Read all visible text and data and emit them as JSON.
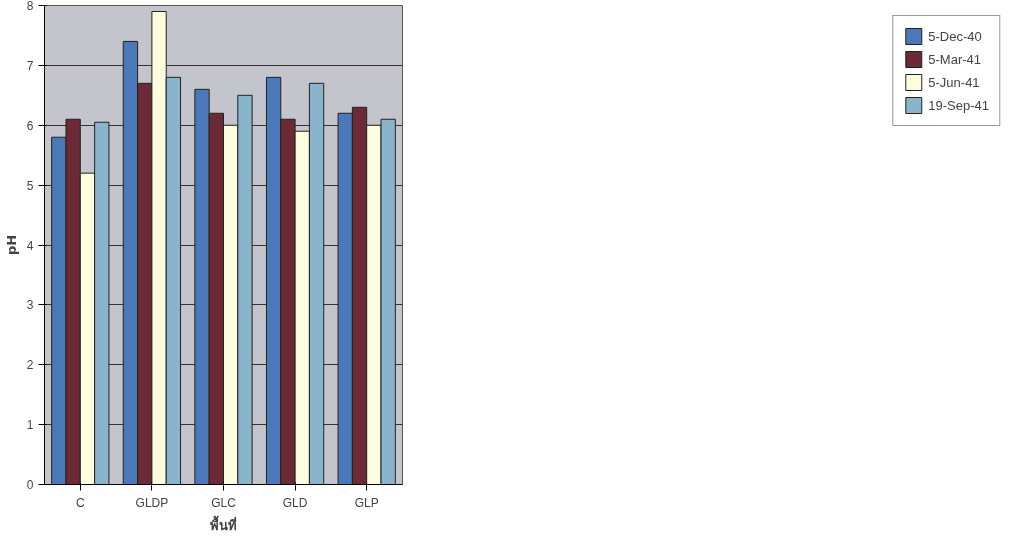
{
  "chart_data": {
    "type": "bar",
    "xlabel": "พื้นที่",
    "ylabel": "pH",
    "categories": [
      "C",
      "GLDP",
      "GLC",
      "GLD",
      "GLP"
    ],
    "series": [
      {
        "name": "5-Dec-40",
        "color": "#4a78b8",
        "values": [
          5.8,
          7.4,
          6.6,
          6.8,
          6.2
        ]
      },
      {
        "name": "5-Mar-41",
        "color": "#6b2a35",
        "values": [
          6.1,
          6.7,
          6.2,
          6.1,
          6.3
        ]
      },
      {
        "name": "5-Jun-41",
        "color": "#fffde0",
        "values": [
          5.2,
          7.9,
          6.0,
          5.9,
          6.0
        ]
      },
      {
        "name": "19-Sep-41",
        "color": "#8ab4cc",
        "values": [
          6.05,
          6.8,
          6.5,
          6.7,
          6.1
        ]
      }
    ],
    "ylim": [
      0,
      8
    ],
    "yticks": [
      0,
      1,
      2,
      3,
      4,
      5,
      6,
      7,
      8
    ],
    "grid": "y",
    "legend": "right"
  }
}
